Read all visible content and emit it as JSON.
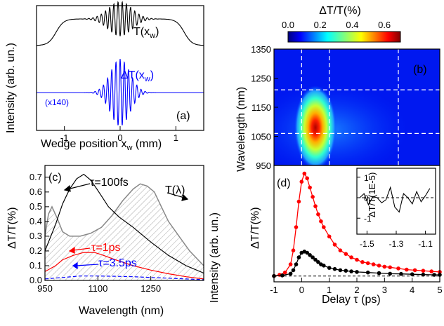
{
  "chart_data": [
    {
      "id": "a",
      "type": "line",
      "panel_label": "(a)",
      "xlabel": "Wedge position x",
      "xlabel_sub": "w",
      "xlabel_unit": " (mm)",
      "ylabel": "Intensity (arb. un.)",
      "xlim": [
        -1.5,
        1.5
      ],
      "xticks": [
        -1,
        0,
        1
      ],
      "series": [
        {
          "name": "T(x",
          "name_sub": "w",
          "name_end": ")",
          "color": "#000000",
          "center": 0.0,
          "amplitude": 1.0
        },
        {
          "name": "ΔT(x",
          "name_sub": "w",
          "name_end": ")",
          "color": "#0000ff",
          "scale_note": "(x140)",
          "center": 0.0,
          "amplitude": 0.8
        }
      ]
    },
    {
      "id": "b",
      "type": "heatmap",
      "panel_label": "(b)",
      "ylabel": "Wavelength (nm)",
      "ylim": [
        950,
        1350
      ],
      "yticks": [
        950,
        1050,
        1150,
        1250,
        1350
      ],
      "colorbar": {
        "title": "ΔT/T(%)",
        "range": [
          0,
          0.7
        ],
        "ticks": [
          "0.0",
          "0.2",
          "0.4",
          "0.6"
        ]
      },
      "peak": {
        "delay_ps": 0.15,
        "wavelength_nm": 1070,
        "value": 0.7
      },
      "dashed_vertical_delays": [
        0,
        1,
        3.5
      ],
      "dashed_horizontal_wavelengths": [
        1060,
        1210
      ]
    },
    {
      "id": "c",
      "type": "line",
      "panel_label": "(c)",
      "xlabel": "Wavelength (nm)",
      "ylabel_left": "ΔT/T(%)",
      "ylabel_right": "Intensity (arb. un.)",
      "xlim": [
        950,
        1400
      ],
      "xticks": [
        950,
        1100,
        1250
      ],
      "ylim": [
        0,
        0.78
      ],
      "yticks": [
        "0.0",
        "0.1",
        "0.2",
        "0.3",
        "0.4",
        "0.5",
        "0.6",
        "0.7"
      ],
      "yticks_values": [
        0,
        0.1,
        0.2,
        0.3,
        0.4,
        0.5,
        0.6,
        0.7
      ],
      "spectrum_label": "T(λ)",
      "series": [
        {
          "name": "τ=100fs",
          "color": "#000000",
          "x": [
            950,
            980,
            1000,
            1020,
            1040,
            1060,
            1080,
            1100,
            1130,
            1160,
            1200,
            1250,
            1300,
            1350,
            1400
          ],
          "y": [
            0.2,
            0.38,
            0.52,
            0.62,
            0.69,
            0.72,
            0.68,
            0.61,
            0.5,
            0.43,
            0.36,
            0.26,
            0.17,
            0.1,
            0.05
          ]
        },
        {
          "name": "τ=1ps",
          "color": "#ff0000",
          "x": [
            950,
            980,
            1000,
            1030,
            1060,
            1090,
            1110,
            1150,
            1200,
            1250,
            1300,
            1350,
            1400
          ],
          "y": [
            0.06,
            0.1,
            0.14,
            0.17,
            0.19,
            0.19,
            0.175,
            0.14,
            0.1,
            0.07,
            0.045,
            0.025,
            0.01
          ]
        },
        {
          "name": "τ=3.5ps",
          "color": "#0000ff",
          "x": [
            950,
            1000,
            1050,
            1100,
            1150,
            1200,
            1250,
            1300,
            1350,
            1400
          ],
          "y": [
            0.01,
            0.02,
            0.03,
            0.03,
            0.028,
            0.025,
            0.02,
            0.015,
            0.01,
            0.005
          ]
        },
        {
          "name": "T(λ)",
          "color": "#888888",
          "fill": true,
          "x": [
            950,
            960,
            970,
            985,
            1000,
            1020,
            1050,
            1080,
            1110,
            1140,
            1170,
            1200,
            1220,
            1240,
            1260,
            1280,
            1300,
            1330,
            1360,
            1400
          ],
          "y": [
            0.3,
            0.45,
            0.5,
            0.42,
            0.33,
            0.3,
            0.3,
            0.32,
            0.36,
            0.44,
            0.54,
            0.62,
            0.655,
            0.64,
            0.6,
            0.5,
            0.4,
            0.3,
            0.2,
            0.1
          ]
        }
      ]
    },
    {
      "id": "d",
      "type": "scatter",
      "panel_label": "(d)",
      "xlabel": "Delay τ (ps)",
      "ylabel": "ΔT/T(%)",
      "xlim": [
        -1,
        5
      ],
      "xticks": [
        "-1",
        "0",
        "1",
        "2",
        "3",
        "4",
        "5"
      ],
      "xticks_values": [
        -1,
        0,
        1,
        2,
        3,
        4,
        5
      ],
      "ylim": [
        -0.05,
        0.95
      ],
      "series": [
        {
          "name": "",
          "color": "#ff0000",
          "x": [
            -1,
            -0.8,
            -0.6,
            -0.4,
            -0.3,
            -0.2,
            -0.1,
            0,
            0.1,
            0.2,
            0.3,
            0.4,
            0.5,
            0.6,
            0.7,
            0.8,
            1.0,
            1.2,
            1.4,
            1.6,
            1.8,
            2.0,
            2.2,
            2.4,
            2.6,
            2.8,
            3.0,
            3.2,
            3.5,
            3.8,
            4.1,
            4.4,
            4.7,
            5.0
          ],
          "y": [
            0.0,
            0.01,
            0.03,
            0.1,
            0.22,
            0.42,
            0.64,
            0.81,
            0.88,
            0.84,
            0.76,
            0.68,
            0.6,
            0.53,
            0.47,
            0.42,
            0.34,
            0.27,
            0.22,
            0.19,
            0.16,
            0.14,
            0.12,
            0.11,
            0.1,
            0.09,
            0.08,
            0.075,
            0.065,
            0.055,
            0.05,
            0.045,
            0.04,
            0.035
          ]
        },
        {
          "name": "",
          "color": "#000000",
          "x": [
            -1,
            -0.7,
            -0.4,
            -0.3,
            -0.2,
            -0.1,
            0,
            0.1,
            0.2,
            0.3,
            0.4,
            0.5,
            0.6,
            0.7,
            0.8,
            1.0,
            1.2,
            1.4,
            1.6,
            1.8,
            2.0,
            2.4,
            2.8,
            3.2,
            3.6,
            4.0,
            4.4,
            4.8,
            5.0
          ],
          "y": [
            0.0,
            0.005,
            0.02,
            0.05,
            0.1,
            0.16,
            0.2,
            0.21,
            0.2,
            0.18,
            0.16,
            0.14,
            0.12,
            0.1,
            0.09,
            0.07,
            0.06,
            0.05,
            0.045,
            0.04,
            0.035,
            0.03,
            0.025,
            0.02,
            0.018,
            0.015,
            0.012,
            0.01,
            0.01
          ]
        }
      ],
      "inset": {
        "ylabel": "ΔT/T(1E-5)",
        "xlim": [
          -1.55,
          -1.05
        ],
        "ylim": [
          -1.3,
          1.3
        ],
        "xticks": [
          "-1.5",
          "-1.3",
          "-1.1"
        ],
        "xticks_values": [
          -1.5,
          -1.3,
          -1.1
        ],
        "yticks": [
          "-1",
          "0",
          "1"
        ],
        "yticks_values": [
          -1,
          0,
          1
        ],
        "x": [
          -1.55,
          -1.52,
          -1.49,
          -1.46,
          -1.43,
          -1.4,
          -1.37,
          -1.34,
          -1.31,
          -1.28,
          -1.25,
          -1.22,
          -1.19,
          -1.16,
          -1.13,
          -1.1,
          -1.07
        ],
        "y": [
          0.0,
          0.2,
          -0.35,
          0.05,
          0.0,
          -0.25,
          -0.1,
          0.5,
          -0.45,
          -0.7,
          0.2,
          0.0,
          -0.3,
          0.3,
          -0.2,
          0.1,
          0.45
        ]
      }
    }
  ]
}
